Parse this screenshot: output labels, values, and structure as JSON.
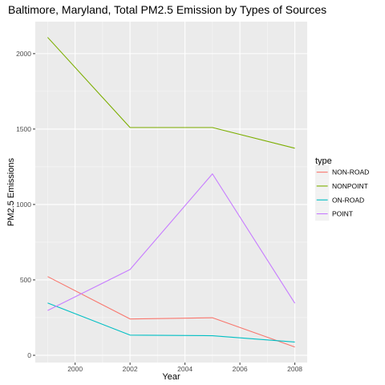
{
  "chart_data": {
    "type": "line",
    "title": "Baltimore, Maryland, Total PM2.5 Emission by Types of Sources",
    "xlabel": "Year",
    "ylabel": "PM2.5 Emissions",
    "legend_title": "type",
    "legend_position": "right",
    "grid": true,
    "xlim": [
      1998.55,
      2008.45
    ],
    "ylim": [
      -48,
      2212
    ],
    "x_ticks": [
      2000,
      2002,
      2004,
      2006,
      2008
    ],
    "x_tick_labels": [
      "2000",
      "2002",
      "2004",
      "2006",
      "2008"
    ],
    "y_ticks": [
      0,
      500,
      1000,
      1500,
      2000
    ],
    "y_tick_labels": [
      "0",
      "500",
      "1000",
      "1500",
      "2000"
    ],
    "x": [
      1999,
      2002,
      2005,
      2008
    ],
    "series": [
      {
        "name": "NON-ROAD",
        "color": "#F8766D",
        "values": [
          522,
          241,
          249,
          55
        ]
      },
      {
        "name": "NONPOINT",
        "color": "#7CAE00",
        "values": [
          2108,
          1510,
          1510,
          1373
        ]
      },
      {
        "name": "ON-ROAD",
        "color": "#00BFC4",
        "values": [
          347,
          134,
          130,
          88
        ]
      },
      {
        "name": "POINT",
        "color": "#C77CFF",
        "values": [
          297,
          569,
          1203,
          345
        ]
      }
    ]
  },
  "colors": {
    "panel_background": "#EBEBEB",
    "grid_major": "#FFFFFF",
    "text": "#000000",
    "tick_text": "#4D4D4D",
    "tick_mark": "#333333"
  }
}
